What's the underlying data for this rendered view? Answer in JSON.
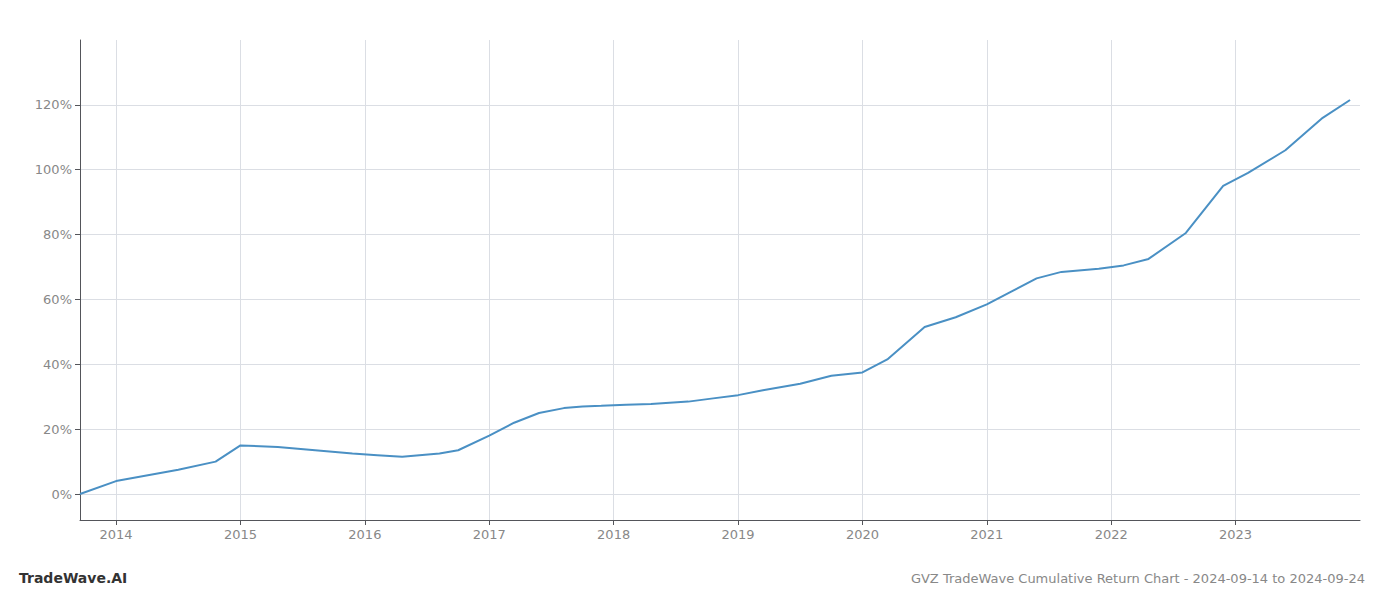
{
  "chart_data": {
    "type": "line",
    "title": "GVZ TradeWave Cumulative Return Chart - 2024-09-14 to 2024-09-24",
    "annotations": [
      "TradeWave.AI"
    ],
    "x": [
      2013.71,
      2014.0,
      2014.5,
      2014.8,
      2015.0,
      2015.3,
      2015.6,
      2015.9,
      2016.1,
      2016.3,
      2016.6,
      2016.75,
      2017.0,
      2017.2,
      2017.4,
      2017.6,
      2017.75,
      2017.9,
      2018.1,
      2018.3,
      2018.6,
      2018.8,
      2019.0,
      2019.2,
      2019.5,
      2019.75,
      2020.0,
      2020.2,
      2020.5,
      2020.75,
      2021.0,
      2021.2,
      2021.4,
      2021.6,
      2021.9,
      2022.1,
      2022.3,
      2022.6,
      2022.9,
      2023.1,
      2023.4,
      2023.7,
      2023.92
    ],
    "values": [
      0.0,
      4.0,
      7.5,
      10.0,
      15.0,
      14.5,
      13.5,
      12.5,
      12.0,
      11.5,
      12.5,
      13.5,
      18.0,
      22.0,
      25.0,
      26.5,
      27.0,
      27.2,
      27.5,
      27.8,
      28.5,
      29.5,
      30.5,
      32.0,
      34.0,
      36.5,
      37.5,
      41.5,
      51.5,
      54.5,
      58.5,
      62.5,
      66.5,
      68.5,
      69.5,
      70.5,
      72.5,
      80.5,
      95.0,
      99.0,
      106.0,
      116.0,
      121.5
    ],
    "color": "#4a90c4",
    "xlim": [
      2013.71,
      2024.0
    ],
    "ylim": [
      -8,
      140
    ],
    "xticks": [
      2014,
      2015,
      2016,
      2017,
      2018,
      2019,
      2020,
      2021,
      2022,
      2023
    ],
    "yticks": [
      {
        "value": 0,
        "label": "0%"
      },
      {
        "value": 20,
        "label": "20%"
      },
      {
        "value": 40,
        "label": "40%"
      },
      {
        "value": 60,
        "label": "60%"
      },
      {
        "value": 80,
        "label": "80%"
      },
      {
        "value": 100,
        "label": "100%"
      },
      {
        "value": 120,
        "label": "120%"
      }
    ],
    "grid": true
  }
}
